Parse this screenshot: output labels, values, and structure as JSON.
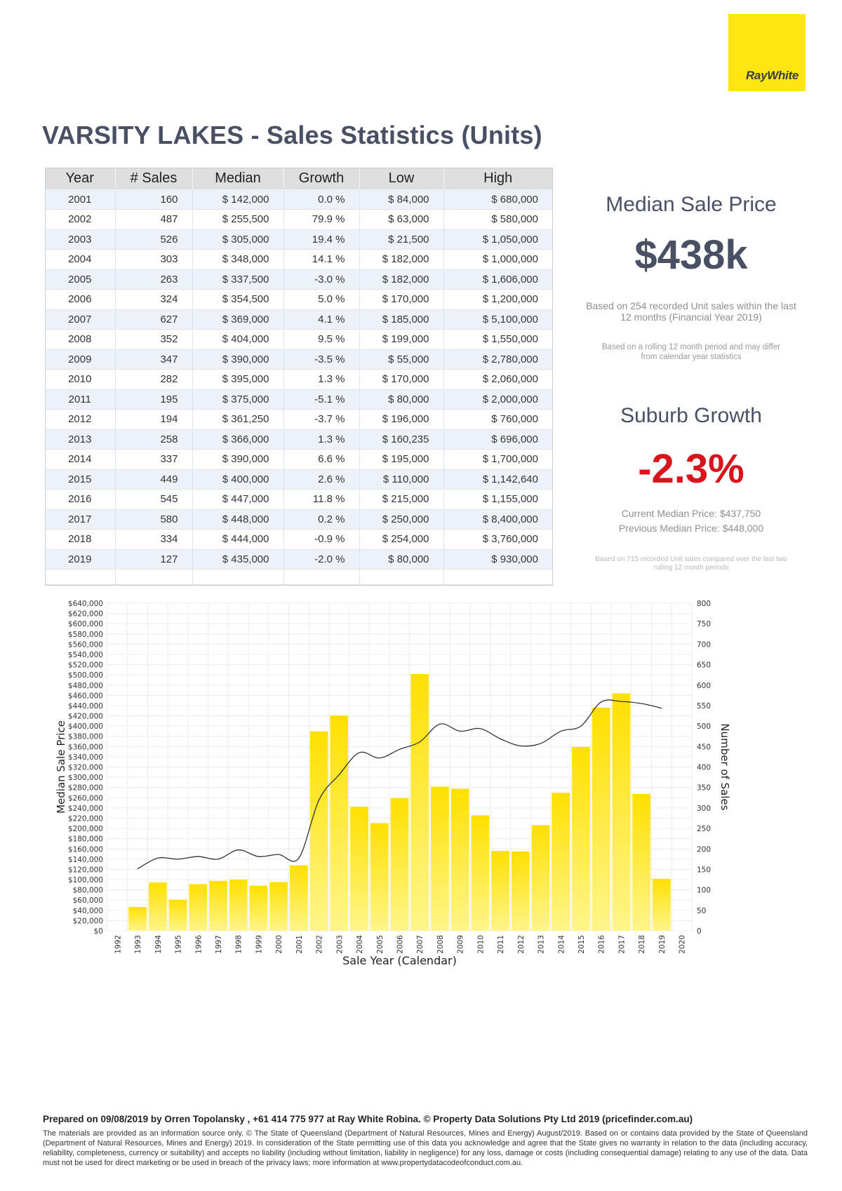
{
  "logo": {
    "text": "RayWhite",
    "color": "#ffe512"
  },
  "title": "VARSITY LAKES - Sales Statistics (Units)",
  "table": {
    "headers": [
      "Year",
      "# Sales",
      "Median",
      "Growth",
      "Low",
      "High"
    ],
    "rows": [
      [
        "2001",
        "160",
        "$ 142,000",
        "0.0 %",
        "$ 84,000",
        "$ 680,000"
      ],
      [
        "2002",
        "487",
        "$ 255,500",
        "79.9 %",
        "$ 63,000",
        "$ 580,000"
      ],
      [
        "2003",
        "526",
        "$ 305,000",
        "19.4 %",
        "$ 21,500",
        "$ 1,050,000"
      ],
      [
        "2004",
        "303",
        "$ 348,000",
        "14.1 %",
        "$ 182,000",
        "$ 1,000,000"
      ],
      [
        "2005",
        "263",
        "$ 337,500",
        "-3.0 %",
        "$ 182,000",
        "$ 1,606,000"
      ],
      [
        "2006",
        "324",
        "$ 354,500",
        "5.0 %",
        "$ 170,000",
        "$ 1,200,000"
      ],
      [
        "2007",
        "627",
        "$ 369,000",
        "4.1 %",
        "$ 185,000",
        "$ 5,100,000"
      ],
      [
        "2008",
        "352",
        "$ 404,000",
        "9.5 %",
        "$ 199,000",
        "$ 1,550,000"
      ],
      [
        "2009",
        "347",
        "$ 390,000",
        "-3.5 %",
        "$ 55,000",
        "$ 2,780,000"
      ],
      [
        "2010",
        "282",
        "$ 395,000",
        "1.3 %",
        "$ 170,000",
        "$ 2,060,000"
      ],
      [
        "2011",
        "195",
        "$ 375,000",
        "-5.1 %",
        "$ 80,000",
        "$ 2,000,000"
      ],
      [
        "2012",
        "194",
        "$ 361,250",
        "-3.7 %",
        "$ 196,000",
        "$ 760,000"
      ],
      [
        "2013",
        "258",
        "$ 366,000",
        "1.3 %",
        "$ 160,235",
        "$ 696,000"
      ],
      [
        "2014",
        "337",
        "$ 390,000",
        "6.6 %",
        "$ 195,000",
        "$ 1,700,000"
      ],
      [
        "2015",
        "449",
        "$ 400,000",
        "2.6 %",
        "$ 110,000",
        "$ 1,142,640"
      ],
      [
        "2016",
        "545",
        "$ 447,000",
        "11.8 %",
        "$ 215,000",
        "$ 1,155,000"
      ],
      [
        "2017",
        "580",
        "$ 448,000",
        "0.2 %",
        "$ 250,000",
        "$ 8,400,000"
      ],
      [
        "2018",
        "334",
        "$ 444,000",
        "-0.9 %",
        "$ 254,000",
        "$ 3,760,000"
      ],
      [
        "2019",
        "127",
        "$ 435,000",
        "-2.0 %",
        "$ 80,000",
        "$ 930,000"
      ]
    ],
    "positive_color": "#26b64b",
    "negative_color": "#e0302a"
  },
  "summary": {
    "median_heading": "Median Sale Price",
    "median_value": "$438k",
    "median_note": "Based on 254 recorded Unit sales within the last 12 months (Financial Year 2019)",
    "rolling_note": "Based on a rolling 12 month period and may differ from calendar year statistics",
    "growth_heading": "Suburb Growth",
    "growth_value": "-2.3%",
    "current_median": "Current Median Price: $437,750",
    "previous_median": "Previous Median Price: $448,000",
    "growth_note": "Based on 715 recorded Unit sales compared over the last two rolling 12 month periods"
  },
  "chart_data": {
    "type": "bar",
    "xlabel": "Sale Year (Calendar)",
    "ylabel": "Median Sale Price",
    "y2label": "Number of Sales",
    "categories": [
      "1992",
      "1993",
      "1994",
      "1995",
      "1996",
      "1997",
      "1998",
      "1999",
      "2000",
      "2001",
      "2002",
      "2003",
      "2004",
      "2005",
      "2006",
      "2007",
      "2008",
      "2009",
      "2010",
      "2011",
      "2012",
      "2013",
      "2014",
      "2015",
      "2016",
      "2017",
      "2018",
      "2019",
      "2020"
    ],
    "ylim": [
      0,
      640000
    ],
    "y2lim": [
      0,
      800
    ],
    "y_ticks": [
      "$0",
      "$20,000",
      "$40,000",
      "$60,000",
      "$80,000",
      "$100,000",
      "$120,000",
      "$140,000",
      "$160,000",
      "$180,000",
      "$200,000",
      "$220,000",
      "$240,000",
      "$260,000",
      "$280,000",
      "$300,000",
      "$320,000",
      "$340,000",
      "$360,000",
      "$380,000",
      "$400,000",
      "$420,000",
      "$440,000",
      "$460,000",
      "$480,000",
      "$500,000",
      "$520,000",
      "$540,000",
      "$560,000",
      "$580,000",
      "$600,000",
      "$620,000",
      "$640,000"
    ],
    "y2_ticks": [
      "0",
      "50",
      "100",
      "150",
      "200",
      "250",
      "300",
      "350",
      "400",
      "450",
      "500",
      "550",
      "600",
      "650",
      "700",
      "750",
      "800"
    ],
    "series": [
      {
        "name": "Number of Sales",
        "type": "bar",
        "axis": "right",
        "values": [
          null,
          58,
          118,
          76,
          114,
          122,
          125,
          110,
          119,
          160,
          487,
          526,
          303,
          263,
          324,
          627,
          352,
          347,
          282,
          195,
          194,
          258,
          337,
          449,
          545,
          580,
          334,
          127,
          null
        ],
        "color_top": "#ffe000",
        "color_bottom": "#fff58a"
      },
      {
        "name": "Median Sale Price",
        "type": "line",
        "axis": "left",
        "values": [
          null,
          121000,
          142000,
          140000,
          145000,
          140000,
          158000,
          145000,
          149000,
          142000,
          255500,
          305000,
          348000,
          337500,
          354500,
          369000,
          404000,
          390000,
          395000,
          375000,
          361250,
          366000,
          390000,
          400000,
          447000,
          448000,
          444000,
          435000,
          null
        ],
        "color": "#333333"
      }
    ],
    "grid": true
  },
  "footer": {
    "prepared": "Prepared on 09/08/2019 by Orren Topolansky , +61 414 775 977 at Ray White Robina. © Property Data Solutions Pty Ltd 2019 (pricefinder.com.au)",
    "disclaimer": "The materials are provided as an information source only. © The State of Queensland (Department of Natural Resources, Mines and Energy) August/2019. Based on or contains data provided by the State of Queensland (Department of Natural Resources, Mines and Energy) 2019. In consideration of the State permitting use of this data you acknowledge and agree that the State gives no warranty in relation to the data (including accuracy, reliability, completeness, currency or suitability) and accepts no liability (including without limitation, liability in negligence) for any loss, damage or costs (including consequential damage) relating to any use of the data. Data must not be used for direct marketing or be used in breach of the privacy laws; more information at www.propertydatacodeofconduct.com.au."
  }
}
